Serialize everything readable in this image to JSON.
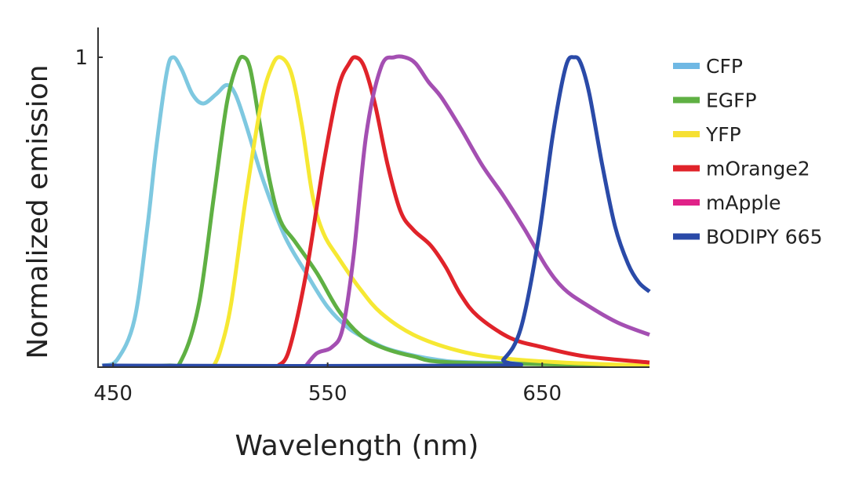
{
  "chart_data": {
    "type": "line",
    "title": "",
    "xlabel": "Wavelength (nm)",
    "ylabel": "Normalized emission",
    "xlim": [
      443,
      700
    ],
    "ylim": [
      0,
      1
    ],
    "xticks": [
      450,
      550,
      650
    ],
    "yticks": [
      1
    ],
    "grid": false,
    "legend_placement": "right",
    "series": [
      {
        "name": "CFP",
        "color": "#7ec8e0",
        "legend_color": "#6fb8e4",
        "x": [
          445,
          452,
          460,
          466,
          470,
          475,
          478,
          482,
          487,
          492,
          498,
          503,
          507,
          512,
          520,
          530,
          540,
          550,
          560,
          570,
          580,
          600,
          620,
          700
        ],
        "y": [
          0,
          0.02,
          0.15,
          0.45,
          0.7,
          0.95,
          1.0,
          0.96,
          0.88,
          0.85,
          0.88,
          0.91,
          0.88,
          0.78,
          0.6,
          0.42,
          0.3,
          0.19,
          0.12,
          0.08,
          0.05,
          0.02,
          0.01,
          0
        ]
      },
      {
        "name": "EGFP",
        "color": "#5fb043",
        "legend_color": "#5fb043",
        "x": [
          445,
          475,
          482,
          490,
          497,
          503,
          508,
          511,
          514,
          518,
          523,
          528,
          535,
          545,
          555,
          565,
          575,
          590,
          610,
          700
        ],
        "y": [
          0,
          0,
          0.02,
          0.2,
          0.55,
          0.85,
          0.98,
          1.0,
          0.96,
          0.8,
          0.6,
          0.47,
          0.4,
          0.3,
          0.18,
          0.1,
          0.06,
          0.03,
          0.01,
          0
        ]
      },
      {
        "name": "YFP",
        "color": "#f6e833",
        "legend_color": "#f6e033",
        "x": [
          497,
          500,
          505,
          512,
          519,
          524,
          528,
          533,
          538,
          543,
          548,
          555,
          565,
          575,
          590,
          610,
          630,
          660,
          700
        ],
        "y": [
          0,
          0.05,
          0.2,
          0.55,
          0.85,
          0.97,
          1.0,
          0.95,
          0.78,
          0.55,
          0.43,
          0.35,
          0.25,
          0.17,
          0.1,
          0.05,
          0.025,
          0.01,
          0
        ]
      },
      {
        "name": "mOrange2",
        "color": "#e0232a",
        "legend_color": "#e0232a",
        "x": [
          527,
          532,
          540,
          548,
          555,
          560,
          563,
          567,
          572,
          578,
          584,
          590,
          598,
          605,
          612,
          620,
          635,
          650,
          670,
          700
        ],
        "y": [
          0,
          0.05,
          0.3,
          0.65,
          0.9,
          0.98,
          1.0,
          0.97,
          0.85,
          0.65,
          0.5,
          0.44,
          0.39,
          0.32,
          0.23,
          0.16,
          0.09,
          0.06,
          0.03,
          0.01
        ]
      },
      {
        "name": "mApple",
        "color": "#a44fb2",
        "legend_color": "#e02288",
        "x": [
          540,
          545,
          552,
          557,
          562,
          568,
          575,
          581,
          586,
          591,
          597,
          603,
          612,
          622,
          632,
          642,
          652,
          660,
          670,
          685,
          700
        ],
        "y": [
          0,
          0.04,
          0.06,
          0.12,
          0.35,
          0.75,
          0.97,
          1.0,
          1.0,
          0.98,
          0.92,
          0.87,
          0.77,
          0.65,
          0.55,
          0.44,
          0.32,
          0.25,
          0.2,
          0.14,
          0.1
        ]
      },
      {
        "name": "BODIPY 665",
        "color": "#2a4aa8",
        "legend_color": "#2a4aa8",
        "x": [
          445,
          625,
          632,
          640,
          648,
          655,
          661,
          665,
          668,
          672,
          678,
          684,
          690,
          695,
          700
        ],
        "y": [
          0,
          0,
          0.02,
          0.12,
          0.4,
          0.75,
          0.97,
          1.0,
          0.98,
          0.88,
          0.65,
          0.45,
          0.33,
          0.27,
          0.24
        ]
      }
    ]
  }
}
